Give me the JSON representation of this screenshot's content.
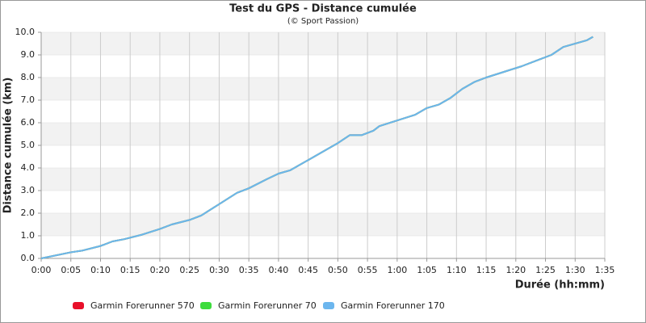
{
  "chart_data": {
    "type": "line",
    "title": "Test du GPS - Distance cumulée",
    "subtitle": "(© Sport Passion)",
    "x_label": "Durée (hh:mm)",
    "y_label": "Distance cumulée (km)",
    "x": [
      0,
      5,
      7,
      10,
      12,
      14,
      17,
      20,
      22,
      25,
      27,
      30,
      33,
      35,
      38,
      40,
      42,
      45,
      48,
      50,
      52,
      54,
      56,
      57,
      60,
      63,
      65,
      67,
      69,
      71,
      73,
      75,
      78,
      81,
      84,
      86,
      88,
      92,
      93
    ],
    "series": [
      {
        "name": "Garmin Forerunner 570",
        "color": "#e8102a",
        "values": [
          0,
          0.27,
          0.35,
          0.55,
          0.75,
          0.85,
          1.05,
          1.3,
          1.5,
          1.7,
          1.9,
          2.4,
          2.9,
          3.1,
          3.5,
          3.75,
          3.9,
          4.35,
          4.8,
          5.1,
          5.45,
          5.45,
          5.65,
          5.85,
          6.1,
          6.35,
          6.65,
          6.8,
          7.1,
          7.5,
          7.8,
          8.0,
          8.25,
          8.5,
          8.8,
          9.0,
          9.35,
          9.65,
          9.8
        ]
      },
      {
        "name": "Garmin Forerunner 70",
        "color": "#3ddc3d",
        "values": [
          0,
          0.27,
          0.35,
          0.55,
          0.75,
          0.85,
          1.05,
          1.3,
          1.5,
          1.7,
          1.9,
          2.4,
          2.9,
          3.1,
          3.5,
          3.75,
          3.9,
          4.35,
          4.8,
          5.1,
          5.45,
          5.45,
          5.65,
          5.85,
          6.1,
          6.35,
          6.65,
          6.8,
          7.1,
          7.5,
          7.8,
          8.0,
          8.25,
          8.5,
          8.8,
          9.0,
          9.35,
          9.65,
          9.8
        ]
      },
      {
        "name": "Garmin Forerunner 170",
        "color": "#6cb6ee",
        "values": [
          0,
          0.27,
          0.35,
          0.55,
          0.75,
          0.85,
          1.05,
          1.3,
          1.5,
          1.7,
          1.9,
          2.4,
          2.9,
          3.1,
          3.5,
          3.75,
          3.9,
          4.35,
          4.8,
          5.1,
          5.45,
          5.45,
          5.65,
          5.85,
          6.1,
          6.35,
          6.65,
          6.8,
          7.1,
          7.5,
          7.8,
          8.0,
          8.25,
          8.5,
          8.8,
          9.0,
          9.35,
          9.65,
          9.8
        ]
      }
    ],
    "xlim": [
      0,
      95
    ],
    "xticks": [
      {
        "value": 0,
        "label": "0:00"
      },
      {
        "value": 5,
        "label": "0:05"
      },
      {
        "value": 10,
        "label": "0:10"
      },
      {
        "value": 15,
        "label": "0:15"
      },
      {
        "value": 20,
        "label": "0:20"
      },
      {
        "value": 25,
        "label": "0:25"
      },
      {
        "value": 30,
        "label": "0:30"
      },
      {
        "value": 35,
        "label": "0:35"
      },
      {
        "value": 40,
        "label": "0:40"
      },
      {
        "value": 45,
        "label": "0:45"
      },
      {
        "value": 50,
        "label": "0:50"
      },
      {
        "value": 55,
        "label": "0:55"
      },
      {
        "value": 60,
        "label": "1:00"
      },
      {
        "value": 65,
        "label": "1:05"
      },
      {
        "value": 70,
        "label": "1:10"
      },
      {
        "value": 75,
        "label": "1:15"
      },
      {
        "value": 80,
        "label": "1:20"
      },
      {
        "value": 85,
        "label": "1:25"
      },
      {
        "value": 90,
        "label": "1:30"
      },
      {
        "value": 95,
        "label": "1:35"
      }
    ],
    "ylim": [
      0,
      10
    ],
    "yticks": [
      {
        "value": 0,
        "label": "0.0"
      },
      {
        "value": 1,
        "label": "1.0"
      },
      {
        "value": 2,
        "label": "2.0"
      },
      {
        "value": 3,
        "label": "3.0"
      },
      {
        "value": 4,
        "label": "4.0"
      },
      {
        "value": 5,
        "label": "5.0"
      },
      {
        "value": 6,
        "label": "6.0"
      },
      {
        "value": 7,
        "label": "7.0"
      },
      {
        "value": 8,
        "label": "8.0"
      },
      {
        "value": 9,
        "label": "9.0"
      },
      {
        "value": 10,
        "label": "10.0"
      }
    ],
    "grid": true,
    "legend": "bottom"
  }
}
